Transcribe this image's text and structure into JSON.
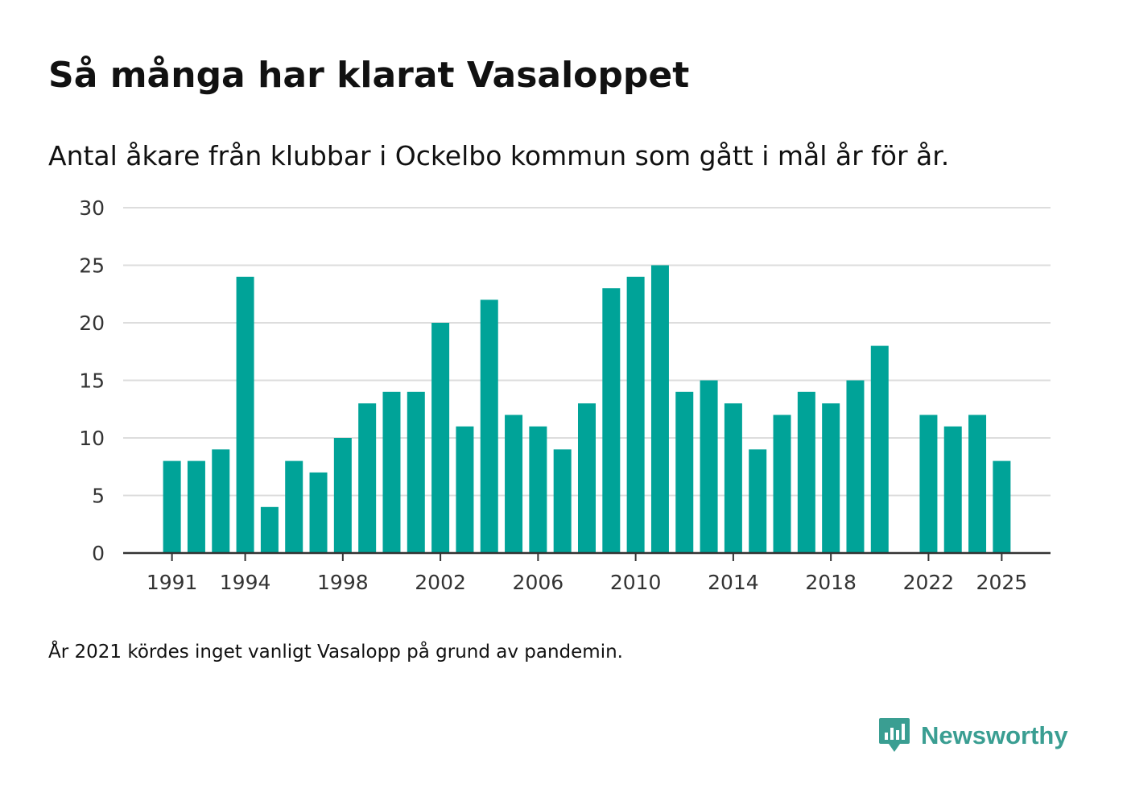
{
  "header": {
    "title": "Så många har klarat Vasaloppet",
    "subtitle": "Antal åkare från klubbar i Ockelbo kommun som gått i mål år för år."
  },
  "footer": {
    "note": "År 2021 kördes inget vanligt Vasalopp på grund av pandemin.",
    "brand": "Newsworthy"
  },
  "colors": {
    "bar": "#00a398",
    "grid": "#dddddd",
    "axis": "#333333",
    "brand": "#3a9e92"
  },
  "icons": {
    "brand_logo": "newsworthy-logo-icon"
  },
  "chart_data": {
    "type": "bar",
    "title": "Så många har klarat Vasaloppet",
    "subtitle": "Antal åkare från klubbar i Ockelbo kommun som gått i mål år för år.",
    "xlabel": "",
    "ylabel": "",
    "ylim": [
      0,
      30
    ],
    "yticks": [
      0,
      5,
      10,
      15,
      20,
      25,
      30
    ],
    "grid": true,
    "x_range": [
      1989,
      2027
    ],
    "xticks": [
      1991,
      1994,
      1998,
      2002,
      2006,
      2010,
      2014,
      2018,
      2022,
      2025
    ],
    "categories": [
      1991,
      1992,
      1993,
      1994,
      1995,
      1996,
      1997,
      1998,
      1999,
      2000,
      2001,
      2002,
      2003,
      2004,
      2005,
      2006,
      2007,
      2008,
      2009,
      2010,
      2011,
      2012,
      2013,
      2014,
      2015,
      2016,
      2017,
      2018,
      2019,
      2020,
      2022,
      2023,
      2024,
      2025
    ],
    "values": [
      8,
      8,
      9,
      24,
      4,
      8,
      7,
      10,
      13,
      14,
      14,
      20,
      11,
      22,
      12,
      11,
      9,
      13,
      23,
      24,
      25,
      14,
      15,
      13,
      9,
      12,
      14,
      13,
      15,
      18,
      12,
      11,
      12,
      8
    ]
  }
}
